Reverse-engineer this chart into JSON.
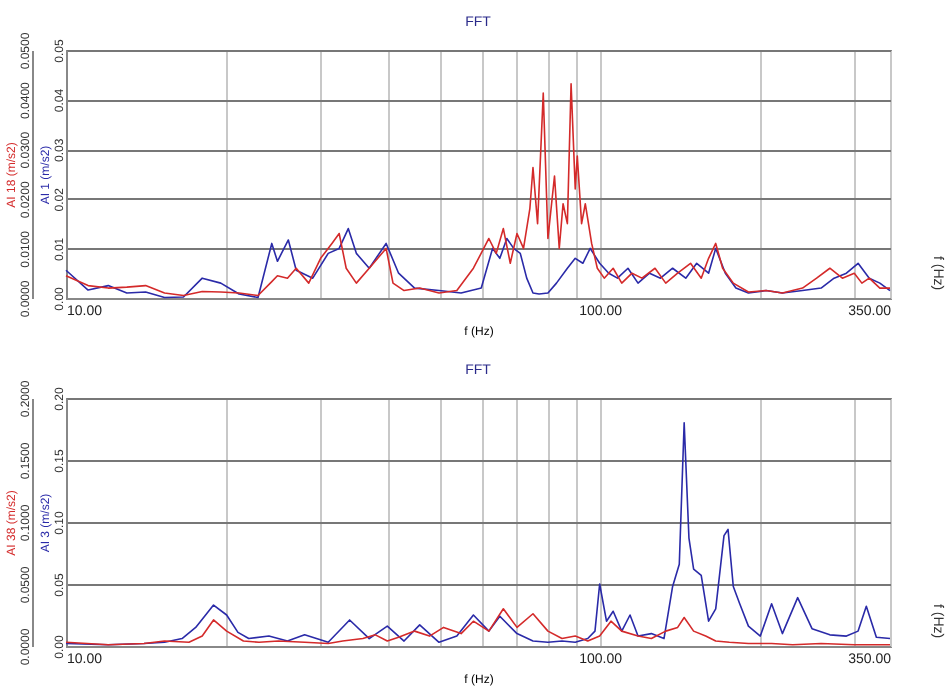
{
  "chart_data": [
    {
      "type": "line",
      "title": "FFT",
      "xlabel": "f (Hz)",
      "ylabel": "AI 18 (m/s2)",
      "y2label": "AI 1 (m/s2)",
      "annotations": [
        "f (Hz)"
      ],
      "log": "x",
      "grid": true,
      "marker": "none",
      "line_style": "solid",
      "xlim": [
        10,
        350
      ],
      "xticks": [
        {
          "value": 10,
          "label": "10.00"
        },
        {
          "value": 20,
          "label": null
        },
        {
          "value": 30,
          "label": null
        },
        {
          "value": 40,
          "label": null
        },
        {
          "value": 50,
          "label": null
        },
        {
          "value": 60,
          "label": null
        },
        {
          "value": 70,
          "label": null
        },
        {
          "value": 80,
          "label": null
        },
        {
          "value": 90,
          "label": null
        },
        {
          "value": 100,
          "label": "100.00"
        },
        {
          "value": 200,
          "label": null
        },
        {
          "value": 300,
          "label": null
        },
        {
          "value": 350,
          "label": "350.00"
        }
      ],
      "ylim": [
        0,
        0.05
      ],
      "yticks": [
        {
          "value": 0,
          "label": "0.0000"
        },
        {
          "value": 0.01,
          "label": "0.0100"
        },
        {
          "value": 0.02,
          "label": "0.0200"
        },
        {
          "value": 0.03,
          "label": "0.0300"
        },
        {
          "value": 0.04,
          "label": "0.0400"
        },
        {
          "value": 0.05,
          "label": "0.0500"
        }
      ],
      "y2lim": [
        0,
        0.05
      ],
      "y2ticks": [
        {
          "value": 0,
          "label": "0.00"
        },
        {
          "value": 0.01,
          "label": "0.01"
        },
        {
          "value": 0.02,
          "label": "0.02"
        },
        {
          "value": 0.03,
          "label": "0.03"
        },
        {
          "value": 0.04,
          "label": "0.04"
        },
        {
          "value": 0.05,
          "label": "0.05"
        }
      ],
      "series": [
        {
          "color": "#d42a2a",
          "x": [
            10,
            11,
            12,
            13,
            14.1,
            15.3,
            16.6,
            18,
            19.5,
            21.1,
            22.9,
            24.3,
            24.9,
            26,
            27,
            28.5,
            30,
            31.5,
            32.5,
            33.5,
            35,
            37,
            39.8,
            41,
            43,
            46,
            50,
            54,
            58,
            62,
            64,
            66,
            68,
            70,
            72,
            74,
            75,
            76.5,
            78.4,
            80,
            82.3,
            84,
            85.4,
            87,
            88.4,
            90,
            90.8,
            92.5,
            94,
            96.6,
            99,
            102,
            106,
            110,
            115,
            120,
            127,
            133,
            140,
            148,
            155,
            160,
            165,
            170,
            178,
            190,
            205,
            220,
            240,
            255,
            270,
            285,
            300,
            310,
            320,
            335,
            350
          ],
          "values": [
            0.0045,
            0.0025,
            0.002,
            0.0022,
            0.0025,
            0.001,
            0.0005,
            0.0013,
            0.0012,
            0.001,
            0.0005,
            0.0033,
            0.0045,
            0.004,
            0.006,
            0.003,
            0.008,
            0.011,
            0.013,
            0.006,
            0.003,
            0.006,
            0.01,
            0.003,
            0.0015,
            0.002,
            0.001,
            0.0015,
            0.006,
            0.012,
            0.009,
            0.014,
            0.007,
            0.013,
            0.01,
            0.018,
            0.0263,
            0.015,
            0.0413,
            0.012,
            0.0246,
            0.01,
            0.019,
            0.015,
            0.0432,
            0.022,
            0.0286,
            0.015,
            0.019,
            0.011,
            0.006,
            0.004,
            0.006,
            0.003,
            0.005,
            0.004,
            0.006,
            0.003,
            0.005,
            0.007,
            0.004,
            0.008,
            0.011,
            0.006,
            0.003,
            0.0012,
            0.0015,
            0.001,
            0.002,
            0.004,
            0.006,
            0.004,
            0.005,
            0.003,
            0.004,
            0.002,
            0.002
          ]
        },
        {
          "color": "#2a2aa8",
          "axis": "y2",
          "x": [
            10,
            11,
            12,
            13,
            14.1,
            15.3,
            16.6,
            18,
            19.5,
            21.1,
            22.9,
            24.3,
            24.9,
            26.1,
            27,
            29,
            31,
            32.5,
            33.8,
            35,
            37,
            39.8,
            42,
            45,
            50,
            55,
            60,
            63,
            65,
            67,
            69,
            71,
            73,
            75,
            77,
            80,
            83,
            87,
            90,
            93,
            96,
            100,
            104,
            108,
            113,
            118,
            124,
            130,
            137,
            145,
            152,
            160,
            165,
            172,
            180,
            190,
            205,
            220,
            240,
            260,
            275,
            290,
            305,
            320,
            335,
            350
          ],
          "values": [
            0.0056,
            0.0016,
            0.0025,
            0.001,
            0.0012,
            0.0001,
            0.0002,
            0.004,
            0.003,
            0.0008,
            0.0001,
            0.011,
            0.0074,
            0.0117,
            0.0056,
            0.004,
            0.009,
            0.01,
            0.014,
            0.009,
            0.006,
            0.011,
            0.005,
            0.002,
            0.0015,
            0.001,
            0.002,
            0.01,
            0.008,
            0.012,
            0.01,
            0.009,
            0.004,
            0.001,
            0.0008,
            0.001,
            0.003,
            0.006,
            0.008,
            0.007,
            0.01,
            0.007,
            0.005,
            0.004,
            0.006,
            0.003,
            0.005,
            0.004,
            0.006,
            0.004,
            0.007,
            0.005,
            0.01,
            0.005,
            0.002,
            0.001,
            0.0015,
            0.001,
            0.0015,
            0.002,
            0.004,
            0.005,
            0.007,
            0.004,
            0.003,
            0.0015
          ]
        }
      ]
    },
    {
      "type": "line",
      "title": "FFT",
      "xlabel": "f (Hz)",
      "ylabel": "AI 38 (m/s2)",
      "y2label": "AI 3 (m/s2)",
      "annotations": [
        "f (Hz)"
      ],
      "log": "x",
      "grid": true,
      "marker": "none",
      "line_style": "solid",
      "xlim": [
        10,
        350
      ],
      "xticks": [
        {
          "value": 10,
          "label": "10.00"
        },
        {
          "value": 20,
          "label": null
        },
        {
          "value": 30,
          "label": null
        },
        {
          "value": 40,
          "label": null
        },
        {
          "value": 50,
          "label": null
        },
        {
          "value": 60,
          "label": null
        },
        {
          "value": 70,
          "label": null
        },
        {
          "value": 80,
          "label": null
        },
        {
          "value": 90,
          "label": null
        },
        {
          "value": 100,
          "label": "100.00"
        },
        {
          "value": 200,
          "label": null
        },
        {
          "value": 300,
          "label": null
        },
        {
          "value": 350,
          "label": "350.00"
        }
      ],
      "ylim": [
        0,
        0.2
      ],
      "yticks": [
        {
          "value": 0,
          "label": "0.0000"
        },
        {
          "value": 0.05,
          "label": "0.0500"
        },
        {
          "value": 0.1,
          "label": "0.1000"
        },
        {
          "value": 0.15,
          "label": "0.1500"
        },
        {
          "value": 0.2,
          "label": "0.2000"
        }
      ],
      "y2lim": [
        0,
        0.2
      ],
      "y2ticks": [
        {
          "value": 0,
          "label": "0.00"
        },
        {
          "value": 0.05,
          "label": "0.05"
        },
        {
          "value": 0.1,
          "label": "0.10"
        },
        {
          "value": 0.15,
          "label": "0.15"
        },
        {
          "value": 0.2,
          "label": "0.20"
        }
      ],
      "series": [
        {
          "color": "#d42a2a",
          "x": [
            10,
            12,
            14,
            15.3,
            17,
            18,
            18.9,
            20,
            21.5,
            23,
            25,
            28,
            31,
            33,
            36,
            38,
            40,
            42,
            45,
            48,
            51,
            55,
            58,
            62,
            66,
            70,
            75,
            80,
            85,
            90,
            95,
            100,
            105,
            110,
            118,
            125,
            133,
            140,
            144,
            150,
            158,
            165,
            175,
            190,
            210,
            230,
            260,
            300,
            350
          ],
          "values": [
            0.003,
            0.001,
            0.002,
            0.004,
            0.003,
            0.008,
            0.021,
            0.012,
            0.004,
            0.003,
            0.004,
            0.003,
            0.002,
            0.004,
            0.006,
            0.009,
            0.004,
            0.007,
            0.012,
            0.008,
            0.015,
            0.01,
            0.02,
            0.012,
            0.03,
            0.015,
            0.026,
            0.012,
            0.006,
            0.008,
            0.004,
            0.008,
            0.02,
            0.012,
            0.008,
            0.006,
            0.012,
            0.015,
            0.023,
            0.012,
            0.008,
            0.004,
            0.003,
            0.002,
            0.002,
            0.001,
            0.002,
            0.001,
            0.001
          ]
        },
        {
          "color": "#2a2aa8",
          "axis": "y2",
          "x": [
            10,
            12,
            14,
            15.3,
            16.5,
            17.5,
            18.9,
            20,
            21,
            22,
            24,
            26,
            28,
            31,
            34,
            37,
            40,
            43,
            46,
            50,
            54,
            58,
            62,
            65,
            70,
            75,
            80,
            85,
            90,
            95,
            98,
            100,
            103,
            106,
            110,
            114,
            118,
            125,
            132,
            137,
            141,
            144,
            147,
            150,
            155,
            160,
            165,
            171,
            174,
            178,
            183,
            190,
            200,
            210,
            220,
            235,
            250,
            270,
            290,
            305,
            316,
            330,
            350
          ],
          "values": [
            0.002,
            0.001,
            0.002,
            0.003,
            0.006,
            0.015,
            0.033,
            0.025,
            0.011,
            0.006,
            0.008,
            0.004,
            0.009,
            0.003,
            0.021,
            0.006,
            0.016,
            0.004,
            0.017,
            0.003,
            0.008,
            0.025,
            0.012,
            0.024,
            0.01,
            0.004,
            0.003,
            0.004,
            0.003,
            0.006,
            0.012,
            0.05,
            0.02,
            0.028,
            0.012,
            0.025,
            0.008,
            0.01,
            0.006,
            0.048,
            0.066,
            0.18,
            0.087,
            0.062,
            0.057,
            0.02,
            0.03,
            0.089,
            0.094,
            0.048,
            0.034,
            0.016,
            0.008,
            0.034,
            0.01,
            0.039,
            0.014,
            0.009,
            0.008,
            0.012,
            0.032,
            0.007,
            0.006
          ]
        }
      ]
    }
  ]
}
